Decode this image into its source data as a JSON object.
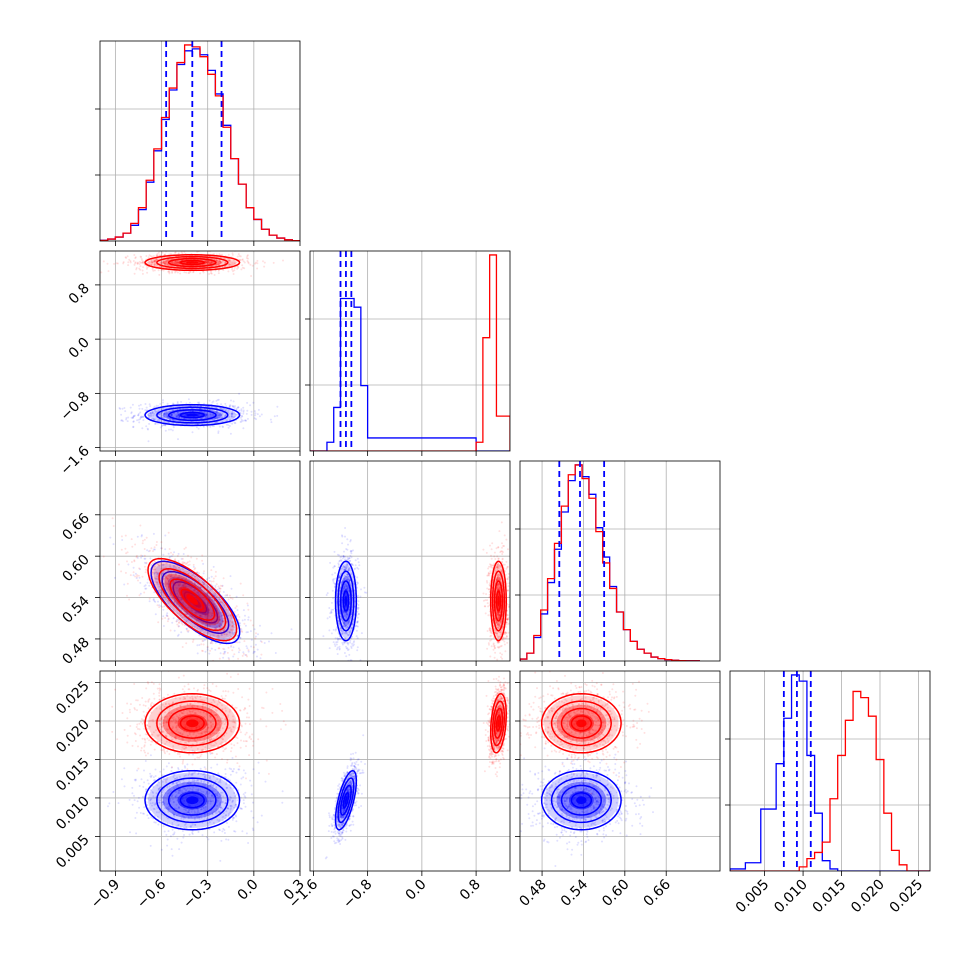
{
  "chart_data": {
    "type": "corner",
    "series": [
      {
        "name": "",
        "color": "#0000ff"
      },
      {
        "name": "",
        "color": "#ff0000"
      }
    ],
    "colors": {
      "blue": "#0000ff",
      "red": "#ff0000",
      "grid": "#b0b0b0"
    },
    "grid": true,
    "parameters": [
      {
        "range": [
          -1.0,
          0.3
        ],
        "ticks": [
          -0.9,
          -0.6,
          -0.3,
          0.0,
          0.3
        ],
        "tick_labels": [
          "−0.9",
          "−0.6",
          "−0.3",
          "0.0",
          "0.3"
        ]
      },
      {
        "range": [
          -1.65,
          1.3
        ],
        "ticks": [
          -1.6,
          -0.8,
          0.0,
          0.8
        ],
        "tick_labels": [
          "−1.6",
          "−0.8",
          "0.0",
          "0.8"
        ]
      },
      {
        "range": [
          0.448,
          0.738
        ],
        "ticks": [
          0.48,
          0.54,
          0.6,
          0.66
        ],
        "tick_labels": [
          "0.48",
          "0.54",
          "0.60",
          "0.66"
        ]
      },
      {
        "range": [
          0.0005,
          0.0265
        ],
        "ticks": [
          0.005,
          0.01,
          0.015,
          0.02,
          0.025
        ],
        "tick_labels": [
          "0.005",
          "0.010",
          "0.015",
          "0.020",
          "0.025"
        ]
      }
    ],
    "quantiles_blue": [
      [
        -0.57,
        -0.4,
        -0.21
      ],
      [
        -1.2,
        -1.12,
        -1.04
      ],
      [
        0.505,
        0.535,
        0.57
      ],
      [
        0.0075,
        0.0092,
        0.011
      ]
    ],
    "histograms": [
      {
        "edges": [
          -1.0,
          -0.95,
          -0.9,
          -0.85,
          -0.8,
          -0.75,
          -0.7,
          -0.65,
          -0.6,
          -0.55,
          -0.5,
          -0.45,
          -0.4,
          -0.35,
          -0.3,
          -0.25,
          -0.2,
          -0.15,
          -0.1,
          -0.05,
          0.0,
          0.05,
          0.1,
          0.15,
          0.2,
          0.25,
          0.3
        ],
        "blue": [
          0.4,
          1,
          2,
          4,
          8,
          16,
          30,
          46,
          62,
          77,
          90,
          97,
          98,
          95,
          87,
          75,
          59,
          42,
          29,
          17,
          11,
          6,
          3,
          1.5,
          0.6,
          0.2
        ],
        "red": [
          0.3,
          1,
          2,
          4,
          9,
          17,
          31,
          47,
          63,
          78,
          91,
          100,
          99,
          94,
          85,
          74,
          58,
          42,
          29,
          17,
          11,
          6,
          3,
          1.5,
          0.6,
          0.2
        ]
      },
      {
        "edges": [
          -1.65,
          -1.4,
          -1.3,
          -1.2,
          -1.1,
          -1.0,
          -0.9,
          -0.8,
          0.8,
          0.9,
          1.0,
          1.1,
          1.3
        ],
        "blue": [
          0,
          2,
          10,
          35,
          35,
          33,
          15,
          3,
          0,
          0,
          0,
          0
        ],
        "red": [
          0,
          0,
          0,
          0,
          0,
          0,
          0,
          0,
          2,
          26,
          45,
          8
        ]
      },
      {
        "edges": [
          0.448,
          0.458,
          0.468,
          0.478,
          0.488,
          0.498,
          0.508,
          0.518,
          0.528,
          0.538,
          0.548,
          0.558,
          0.568,
          0.578,
          0.588,
          0.598,
          0.608,
          0.618,
          0.628,
          0.638,
          0.648,
          0.658,
          0.668,
          0.678,
          0.688,
          0.698,
          0.708
        ],
        "blue": [
          1,
          4,
          12,
          24,
          40,
          57,
          76,
          92,
          100,
          94,
          85,
          68,
          53,
          38,
          25,
          16,
          10,
          6,
          4,
          2,
          1.2,
          0.7,
          0.4,
          0.2,
          0.1,
          0.1
        ],
        "red": [
          1,
          4,
          13,
          26,
          42,
          60,
          79,
          95,
          100,
          93,
          83,
          66,
          50,
          37,
          25,
          16,
          10,
          6,
          4,
          2,
          1.2,
          0.7,
          0.4,
          0.2,
          0.1,
          0.1
        ]
      },
      {
        "edges": [
          0.0005,
          0.0025,
          0.0045,
          0.0065,
          0.0075,
          0.0085,
          0.0095,
          0.0105,
          0.0115,
          0.0125,
          0.0135,
          0.0145,
          0.0155,
          0.0165,
          0.0175,
          0.0185,
          0.0195,
          0.0205,
          0.0215,
          0.0225,
          0.0235,
          0.0265
        ],
        "blue": [
          1,
          4,
          30,
          52,
          74,
          95,
          92,
          56,
          28,
          5,
          1,
          0,
          0,
          0,
          0,
          0,
          0,
          0,
          0,
          0,
          0
        ],
        "red": [
          0,
          0,
          0,
          0,
          0,
          0,
          2,
          6,
          9,
          14,
          35,
          56,
          73,
          87,
          84,
          75,
          54,
          28,
          10,
          3,
          0
        ]
      }
    ],
    "pairs": [
      {
        "x": 0,
        "y": 1,
        "blue": {
          "mx": -0.4,
          "my": -1.12,
          "sx": 0.16,
          "sy": 0.08,
          "rho": 0.0
        },
        "red": {
          "mx": -0.4,
          "my": 1.13,
          "sx": 0.16,
          "sy": 0.06,
          "rho": 0.0
        }
      },
      {
        "x": 0,
        "y": 2,
        "blue": {
          "mx": -0.38,
          "my": 0.533,
          "sx": 0.15,
          "sy": 0.031,
          "rho": -0.72
        },
        "red": {
          "mx": -0.4,
          "my": 0.537,
          "sx": 0.15,
          "sy": 0.031,
          "rho": -0.72
        }
      },
      {
        "x": 1,
        "y": 2,
        "blue": {
          "mx": -1.12,
          "my": 0.535,
          "sx": 0.08,
          "sy": 0.03,
          "rho": 0.0
        },
        "red": {
          "mx": 1.13,
          "my": 0.535,
          "sx": 0.06,
          "sy": 0.03,
          "rho": 0.0
        }
      },
      {
        "x": 0,
        "y": 3,
        "blue": {
          "mx": -0.4,
          "my": 0.0097,
          "sx": 0.16,
          "sy": 0.002,
          "rho": 0.0
        },
        "red": {
          "mx": -0.4,
          "my": 0.0197,
          "sx": 0.16,
          "sy": 0.002,
          "rho": 0.0
        }
      },
      {
        "x": 1,
        "y": 3,
        "blue": {
          "mx": -1.12,
          "my": 0.0097,
          "sx": 0.08,
          "sy": 0.002,
          "rho": 0.65
        },
        "red": {
          "mx": 1.13,
          "my": 0.0197,
          "sx": 0.06,
          "sy": 0.002,
          "rho": 0.3
        }
      },
      {
        "x": 2,
        "y": 3,
        "blue": {
          "mx": 0.537,
          "my": 0.0097,
          "sx": 0.03,
          "sy": 0.002,
          "rho": 0.0
        },
        "red": {
          "mx": 0.537,
          "my": 0.0197,
          "sx": 0.03,
          "sy": 0.002,
          "rho": 0.0
        }
      }
    ]
  }
}
